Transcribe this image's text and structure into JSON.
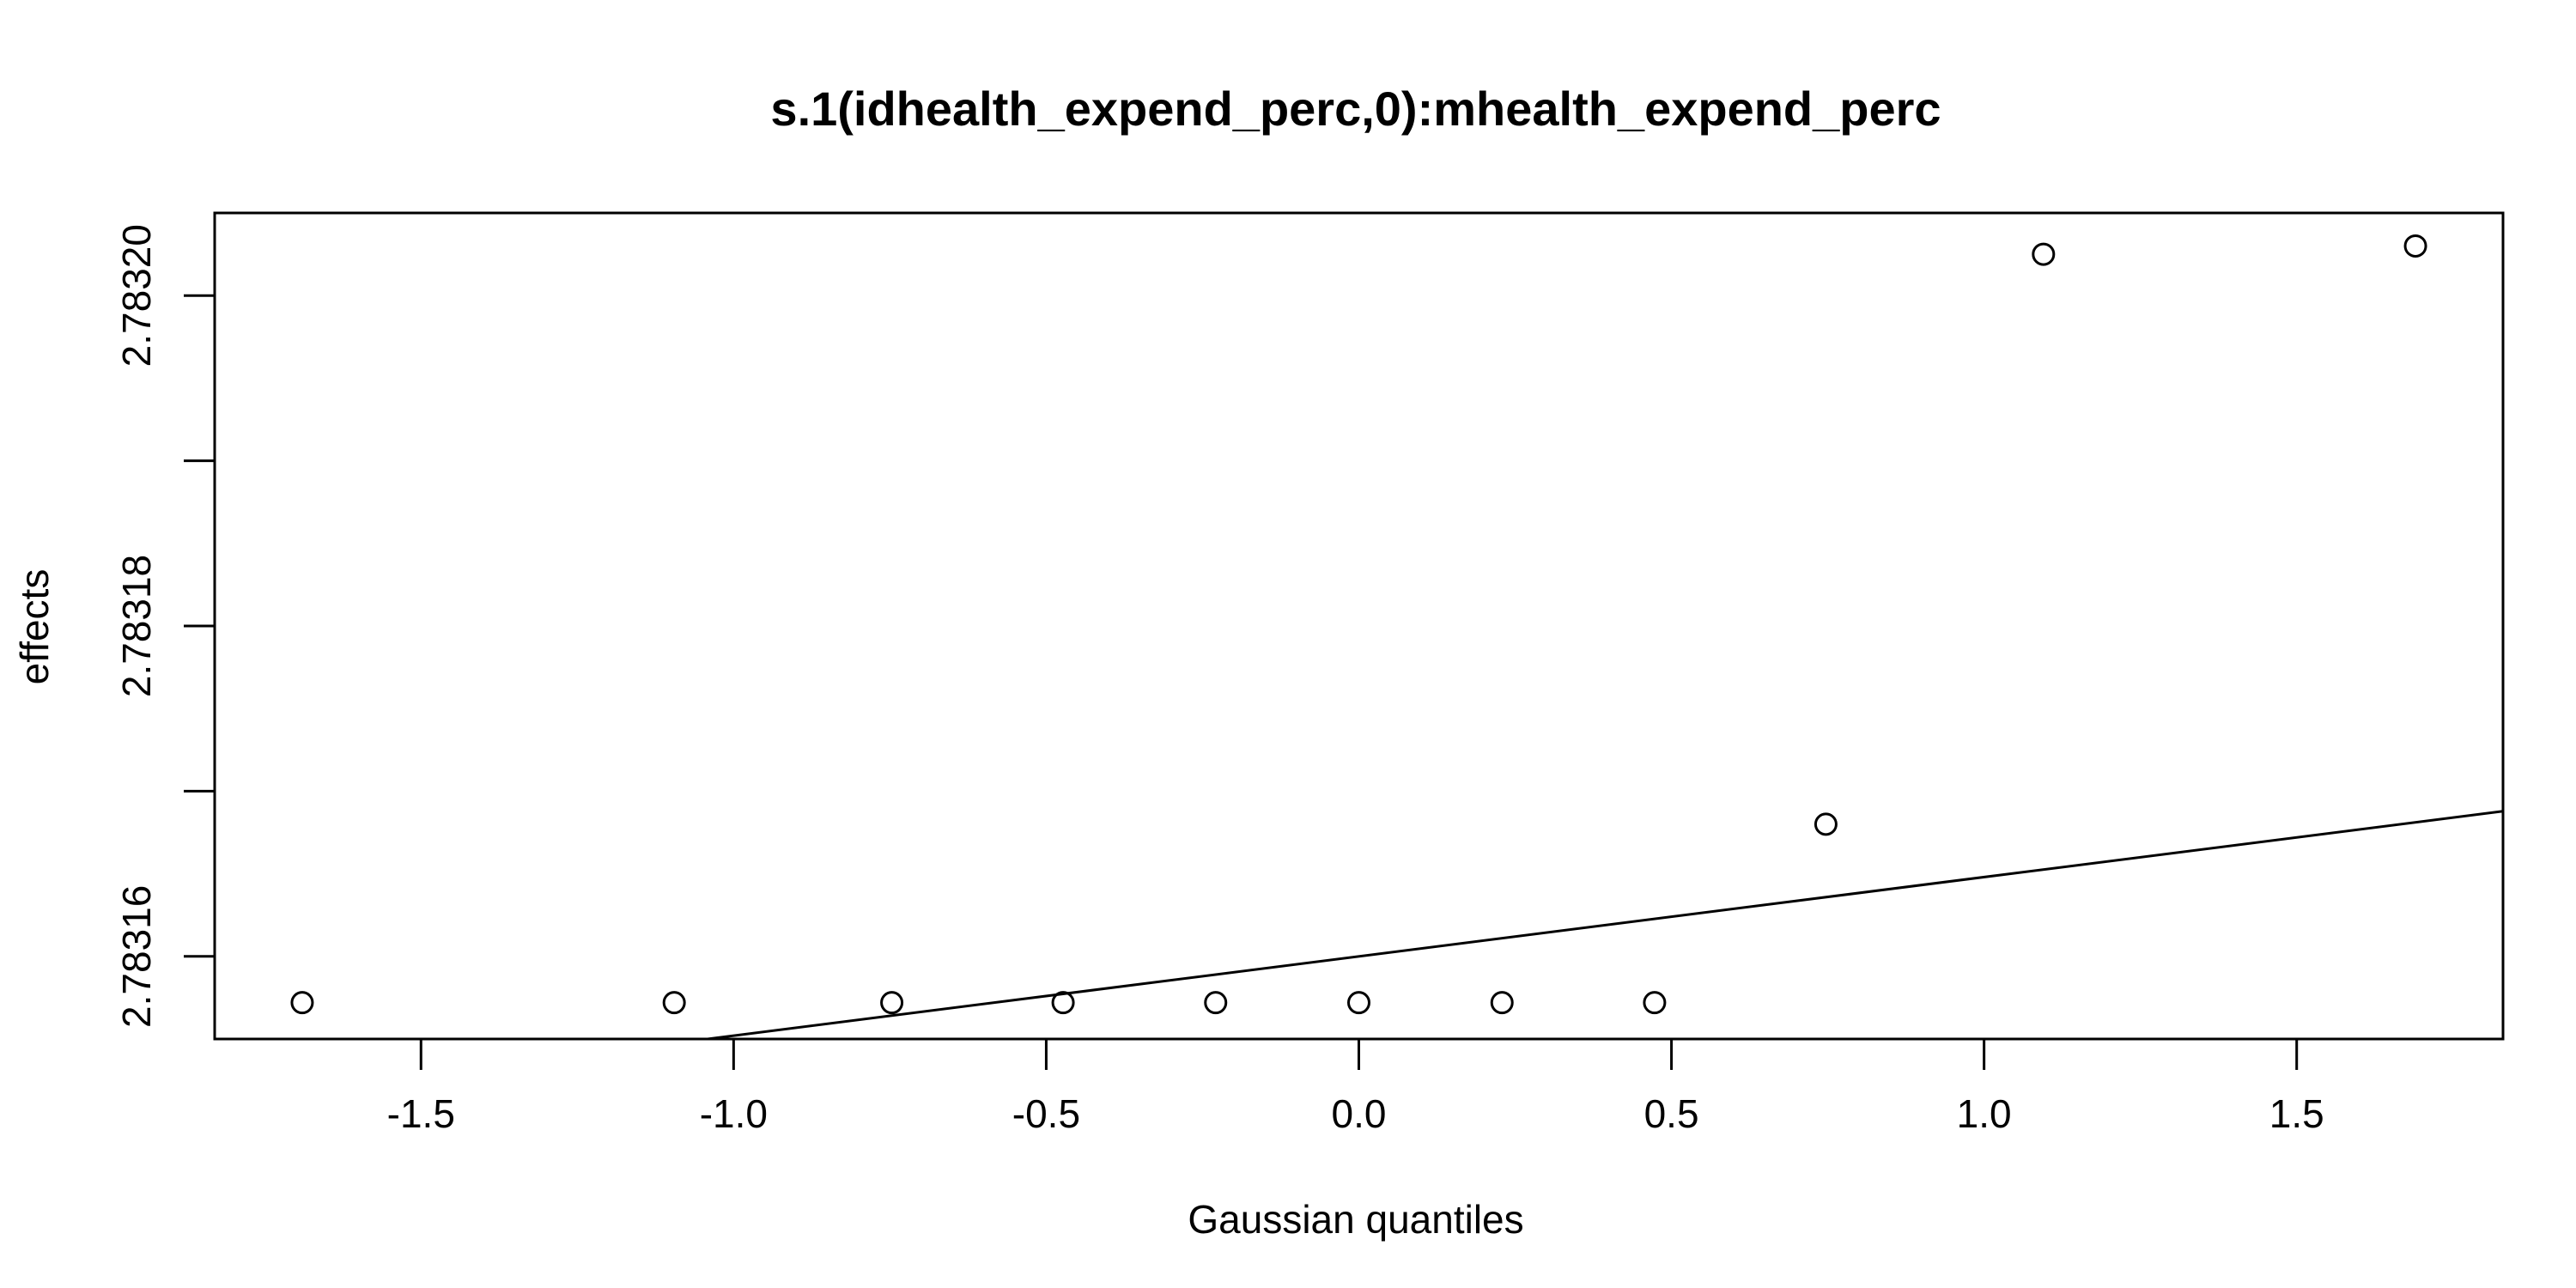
{
  "chart_data": {
    "type": "scatter",
    "title": "s.1(idhealth_expend_perc,0):mhealth_expend_perc",
    "xlabel": "Gaussian quantiles",
    "ylabel": "effects",
    "xlim": [
      -1.83,
      1.83
    ],
    "ylim": [
      2.783155,
      2.783205
    ],
    "x_ticks": [
      -1.5,
      -1.0,
      -0.5,
      0.0,
      0.5,
      1.0,
      1.5
    ],
    "x_tick_labels": [
      "-1.5",
      "-1.0",
      "-0.5",
      "0.0",
      "0.5",
      "1.0",
      "1.5"
    ],
    "y_ticks": [
      2.78316,
      2.78317,
      2.78318,
      2.78319,
      2.7832
    ],
    "y_tick_labels": [
      "2.78316",
      "",
      "2.78318",
      "",
      "2.78320"
    ],
    "x": [
      -1.69,
      -1.095,
      -0.747,
      -0.473,
      -0.229,
      0.0,
      0.229,
      0.473,
      0.747,
      1.095,
      1.69
    ],
    "y": [
      2.7831572,
      2.7831572,
      2.7831572,
      2.7831572,
      2.7831572,
      2.7831572,
      2.7831572,
      2.7831572,
      2.783168,
      2.7832025,
      2.783203
    ],
    "reference_line": {
      "intercept": 2.78316,
      "slope": 4.8e-06
    },
    "grid": false,
    "legend": "none"
  }
}
